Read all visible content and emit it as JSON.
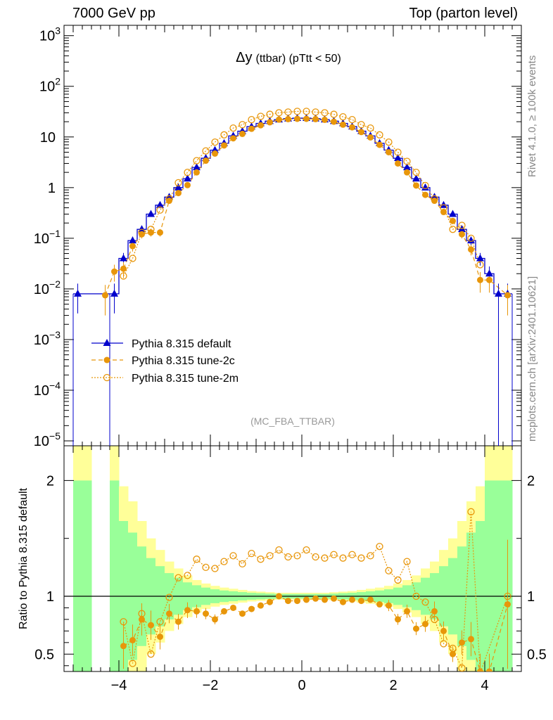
{
  "header": {
    "left": "7000 GeV pp",
    "right": "Top (parton level)"
  },
  "side_labels": {
    "rivet": "Rivet 4.1.0, ≥ 100k events",
    "mcplots": "mcplots.cern.ch [arXiv:2401.10621]"
  },
  "chart_data": [
    {
      "type": "line",
      "title": "Δy (ttbar) (pTtt < 50)",
      "title_main": "Δy",
      "title_sub": "(ttbar) (pTtt < 50)",
      "watermark": "(MC_FBA_TTBAR)",
      "xlabel": "",
      "ylabel": "",
      "yscale": "log",
      "xlim": [
        -5.2,
        4.8
      ],
      "ylim": [
        8e-06,
        1600
      ],
      "y_ticks": [
        {
          "value": 1000,
          "base": "10",
          "exp": "3"
        },
        {
          "value": 100,
          "base": "10",
          "exp": "2"
        },
        {
          "value": 10,
          "base": "10",
          "exp": ""
        },
        {
          "value": 1,
          "base": "1",
          "exp": ""
        },
        {
          "value": 0.1,
          "base": "10",
          "exp": "−1"
        },
        {
          "value": 0.01,
          "base": "10",
          "exp": "−2"
        },
        {
          "value": 0.001,
          "base": "10",
          "exp": "−3"
        },
        {
          "value": 0.0001,
          "base": "10",
          "exp": "−4"
        },
        {
          "value": 1e-05,
          "base": "10",
          "exp": "−5"
        }
      ],
      "legend": [
        "Pythia 8.315 default",
        "Pythia 8.315 tune-2c",
        "Pythia 8.315 tune-2m"
      ],
      "legend_position": "lower-left",
      "x": [
        -4.9,
        -4.3,
        -4.1,
        -3.9,
        -3.7,
        -3.5,
        -3.3,
        -3.1,
        -2.9,
        -2.7,
        -2.5,
        -2.3,
        -2.1,
        -1.9,
        -1.7,
        -1.5,
        -1.3,
        -1.1,
        -0.9,
        -0.7,
        -0.5,
        -0.3,
        -0.1,
        0.1,
        0.3,
        0.5,
        0.7,
        0.9,
        1.1,
        1.3,
        1.5,
        1.7,
        1.9,
        2.1,
        2.3,
        2.5,
        2.7,
        2.9,
        3.1,
        3.3,
        3.5,
        3.7,
        3.9,
        4.1,
        4.3,
        4.5
      ],
      "series": [
        {
          "name": "Pythia 8.315 default",
          "color": "#0000cc",
          "values": [
            0.008,
            null,
            0.008,
            0.04,
            0.09,
            0.15,
            0.3,
            0.45,
            0.65,
            1.0,
            1.5,
            2.5,
            3.8,
            5.5,
            7.5,
            10.5,
            13,
            16,
            18.5,
            20.5,
            22,
            23,
            23.5,
            23.5,
            23,
            22,
            20.5,
            18.5,
            16,
            13,
            10.5,
            7.5,
            5.5,
            3.8,
            2.5,
            1.5,
            1.0,
            0.65,
            0.45,
            0.3,
            0.15,
            0.09,
            0.04,
            0.02,
            0.008,
            0.008
          ]
        },
        {
          "name": "Pythia 8.315 tune-2c",
          "color": "#e8960a",
          "values": [
            null,
            0.0075,
            0.022,
            0.025,
            0.07,
            0.12,
            0.13,
            0.13,
            0.55,
            0.78,
            1.12,
            2.0,
            3.4,
            4.7,
            6.8,
            9.4,
            11.5,
            14.5,
            17.0,
            19.5,
            22.0,
            22.5,
            22.8,
            22.8,
            22.5,
            21.8,
            20.0,
            17.5,
            15.5,
            12.5,
            9.8,
            7.0,
            5.0,
            3.0,
            2.0,
            1.1,
            0.72,
            0.55,
            0.33,
            0.22,
            0.12,
            0.06,
            0.015,
            0.015,
            null,
            0.0075
          ]
        },
        {
          "name": "Pythia 8.315 tune-2m",
          "color": "#e8960a",
          "values": [
            null,
            null,
            null,
            0.018,
            0.04,
            0.13,
            0.15,
            0.36,
            0.6,
            1.25,
            2.0,
            3.4,
            5.3,
            7.9,
            11.0,
            15.0,
            17.5,
            22.0,
            25.5,
            28.0,
            30.0,
            31.0,
            32.0,
            32.0,
            31.0,
            30.0,
            28.0,
            25.0,
            22.0,
            17.5,
            15.0,
            11.0,
            7.9,
            5.0,
            3.3,
            2.0,
            1.1,
            0.6,
            0.4,
            0.15,
            0.18,
            0.1,
            0.03,
            null,
            null,
            null
          ]
        }
      ]
    },
    {
      "type": "line",
      "title": "",
      "ylabel": "Ratio to Pythia 8.315 default",
      "xlabel": "",
      "xlim": [
        -5.2,
        4.8
      ],
      "ylim": [
        0.35,
        2.3
      ],
      "x_ticks": [
        {
          "value": -4,
          "label": "−4"
        },
        {
          "value": -2,
          "label": "−2"
        },
        {
          "value": 0,
          "label": "0"
        },
        {
          "value": 2,
          "label": "2"
        },
        {
          "value": 4,
          "label": "4"
        }
      ],
      "y_ticks": [
        {
          "value": 0.5,
          "label": "0.5"
        },
        {
          "value": 1,
          "label": "1"
        },
        {
          "value": 2,
          "label": "2"
        }
      ],
      "reference_line": 1.0,
      "uncertainty_bands": {
        "x_edges": [
          -5.0,
          -4.8,
          -4.6,
          -4.4,
          -4.2,
          -4.0,
          -3.8,
          -3.6,
          -3.4,
          -3.2,
          -3.0,
          -2.8,
          -2.6,
          -2.4,
          -2.2,
          -2.0,
          -1.8,
          -1.6,
          -1.4,
          -1.2,
          -1.0,
          -0.8,
          -0.6,
          -0.4,
          -0.2,
          0.0,
          0.2,
          0.4,
          0.6,
          0.8,
          1.0,
          1.2,
          1.4,
          1.6,
          1.8,
          2.0,
          2.2,
          2.4,
          2.6,
          2.8,
          3.0,
          3.2,
          3.4,
          3.6,
          3.8,
          4.0,
          4.2,
          4.4,
          4.6
        ],
        "yellow_halfwidth": [
          5.0,
          5.0,
          0.0,
          0.0,
          5.0,
          0.95,
          0.82,
          0.65,
          0.5,
          0.4,
          0.3,
          0.24,
          0.18,
          0.14,
          0.11,
          0.09,
          0.075,
          0.065,
          0.055,
          0.045,
          0.04,
          0.035,
          0.03,
          0.03,
          0.03,
          0.03,
          0.03,
          0.03,
          0.035,
          0.04,
          0.045,
          0.055,
          0.065,
          0.075,
          0.09,
          0.11,
          0.14,
          0.18,
          0.24,
          0.3,
          0.4,
          0.5,
          0.65,
          0.82,
          0.95,
          1.3,
          5.0,
          5.0
        ],
        "green_halfwidth": [
          1.0,
          1.0,
          0.0,
          0.0,
          1.0,
          0.65,
          0.55,
          0.43,
          0.33,
          0.26,
          0.2,
          0.16,
          0.12,
          0.095,
          0.075,
          0.06,
          0.05,
          0.043,
          0.036,
          0.03,
          0.027,
          0.023,
          0.02,
          0.02,
          0.02,
          0.02,
          0.02,
          0.02,
          0.023,
          0.027,
          0.03,
          0.036,
          0.043,
          0.05,
          0.06,
          0.075,
          0.095,
          0.12,
          0.16,
          0.2,
          0.26,
          0.33,
          0.43,
          0.55,
          0.65,
          1.0,
          1.0,
          1.0
        ]
      },
      "series": [
        {
          "name": "Pythia 8.315 tune-2c",
          "color": "#e8960a",
          "values": [
            null,
            null,
            null,
            0.57,
            0.62,
            0.8,
            0.75,
            0.65,
            0.85,
            0.78,
            0.88,
            0.87,
            0.85,
            0.8,
            0.87,
            0.9,
            0.85,
            0.89,
            0.92,
            0.95,
            1.0,
            0.96,
            0.96,
            0.97,
            0.98,
            0.97,
            0.98,
            0.95,
            0.97,
            0.96,
            0.97,
            0.93,
            0.92,
            0.8,
            0.87,
            0.72,
            0.76,
            0.87,
            0.7,
            0.5,
            0.6,
            0.63,
            0.35,
            0.35,
            null,
            0.93
          ]
        },
        {
          "name": "Pythia 8.315 tune-2m",
          "color": "#e8960a",
          "values": [
            null,
            null,
            null,
            0.78,
            0.42,
            0.85,
            0.5,
            0.78,
            0.99,
            1.16,
            1.18,
            1.32,
            1.25,
            1.24,
            1.3,
            1.35,
            1.28,
            1.37,
            1.32,
            1.35,
            1.4,
            1.34,
            1.35,
            1.4,
            1.34,
            1.33,
            1.36,
            1.33,
            1.36,
            1.33,
            1.35,
            1.43,
            1.22,
            1.14,
            1.3,
            1.0,
            0.95,
            0.8,
            0.59,
            0.55,
            0.38,
            1.73,
            0.3,
            null,
            null,
            1.0
          ]
        }
      ]
    }
  ]
}
